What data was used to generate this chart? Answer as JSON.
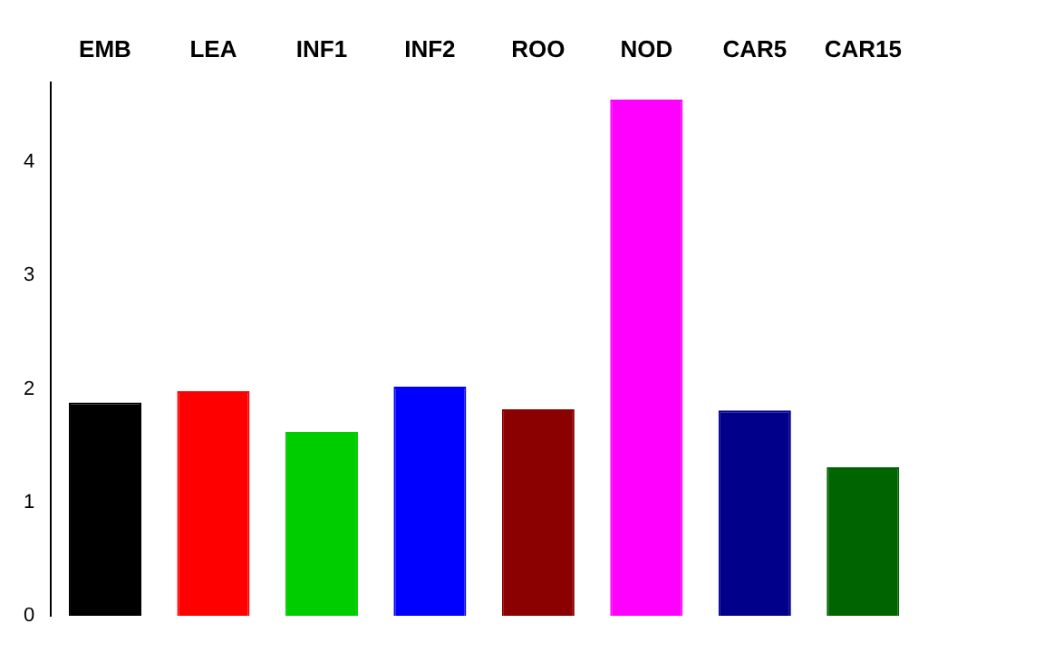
{
  "chart_data": {
    "type": "bar",
    "categories": [
      "EMB",
      "LEA",
      "INF1",
      "INF2",
      "ROO",
      "NOD",
      "CAR5",
      "CAR15"
    ],
    "values": [
      1.88,
      1.98,
      1.62,
      2.02,
      1.82,
      4.55,
      1.81,
      1.31
    ],
    "colors": [
      "#000000",
      "#ff0000",
      "#00cd00",
      "#0000ff",
      "#8b0000",
      "#ff00ff",
      "#00008b",
      "#006400"
    ],
    "ylim": [
      0,
      4.7
    ],
    "yticks": [
      0,
      1,
      2,
      3,
      4
    ],
    "grid": false,
    "legend": false
  }
}
